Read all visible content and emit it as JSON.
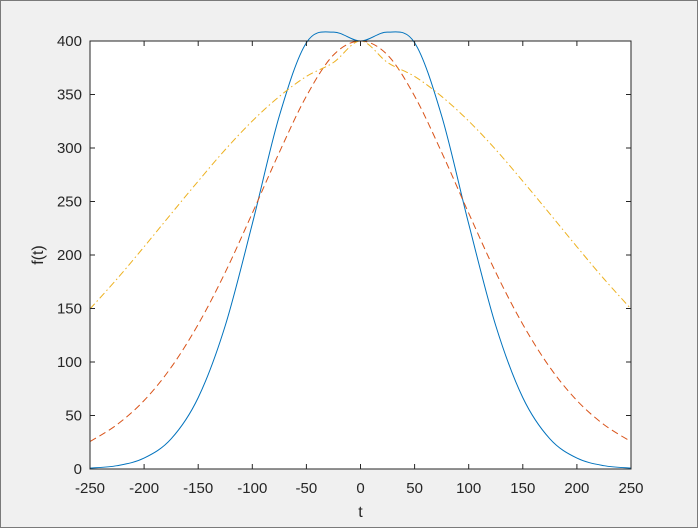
{
  "chart_data": {
    "type": "line",
    "title": "",
    "xlabel": "t",
    "ylabel": "f(t)",
    "xlim": [
      -250,
      250
    ],
    "ylim": [
      0,
      400
    ],
    "x_ticks": [
      -250,
      -200,
      -150,
      -100,
      -50,
      0,
      50,
      100,
      150,
      200,
      250
    ],
    "y_ticks": [
      0,
      50,
      100,
      150,
      200,
      250,
      300,
      350,
      400
    ],
    "x_tick_labels": [
      "-250",
      "-200",
      "-150",
      "-100",
      "-50",
      "0",
      "50",
      "100",
      "150",
      "200",
      "250"
    ],
    "y_tick_labels": [
      "0",
      "50",
      "100",
      "150",
      "200",
      "250",
      "300",
      "350",
      "400"
    ],
    "grid": false,
    "legend": "none",
    "x": [
      -250,
      -225,
      -200,
      -175,
      -150,
      -125,
      -100,
      -75,
      -50,
      -25,
      0,
      25,
      50,
      75,
      100,
      125,
      150,
      175,
      200,
      225,
      250
    ],
    "series": [
      {
        "color": "#0072bd",
        "line_style": "solid",
        "values": [
          0.8,
          3.1,
          10.2,
          28.2,
          66.7,
          134.0,
          229.1,
          330.0,
          398.4,
          408.3,
          400.0,
          408.3,
          398.4,
          330.0,
          229.1,
          134.0,
          66.7,
          28.2,
          10.2,
          3.1,
          0.8
        ]
      },
      {
        "color": "#d95319",
        "line_style": "dashed",
        "values": [
          25.6,
          41.5,
          64.0,
          95.0,
          135.2,
          183.8,
          239.1,
          296.0,
          348.5,
          386.9,
          400.0,
          386.9,
          348.5,
          296.0,
          239.1,
          183.8,
          135.2,
          95.0,
          64.0,
          41.5,
          25.6
        ]
      },
      {
        "color": "#edb120",
        "line_style": "dashdot",
        "values": [
          149.6,
          177.7,
          207.7,
          238.5,
          269.0,
          298.5,
          325.2,
          348.2,
          366.9,
          379.9,
          400.0,
          379.9,
          366.9,
          348.2,
          325.2,
          298.5,
          269.0,
          238.5,
          207.7,
          177.7,
          149.6
        ]
      }
    ]
  }
}
